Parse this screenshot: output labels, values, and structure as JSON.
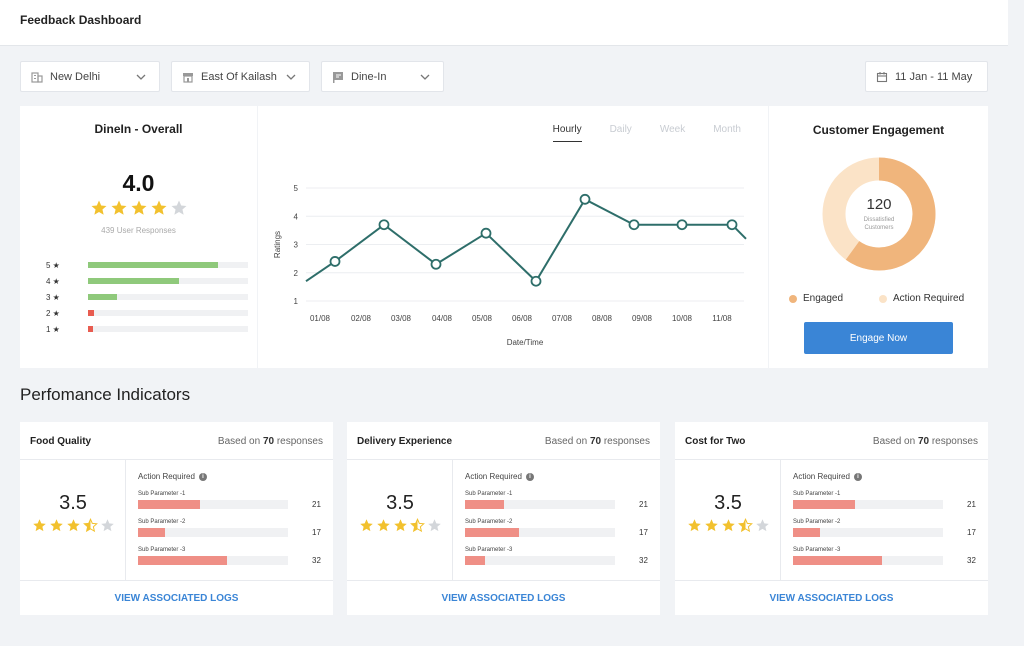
{
  "app": {
    "title": "Feedback Dashboard"
  },
  "filters": {
    "city": {
      "value": "New Delhi",
      "icon": "building-icon"
    },
    "area": {
      "value": "East Of Kailash",
      "icon": "store-icon"
    },
    "channel": {
      "value": "Dine-In",
      "icon": "flag-icon"
    },
    "date_range": {
      "value": "11 Jan - 11 May",
      "icon": "calendar-icon"
    }
  },
  "overall": {
    "title": "DineIn - Overall",
    "score": "4.0",
    "stars": 4,
    "responses": "439 User Responses",
    "distribution": [
      {
        "label": "5 ★",
        "fraction": 0.81,
        "color": "#8fc97b"
      },
      {
        "label": "4 ★",
        "fraction": 0.57,
        "color": "#8fc97b"
      },
      {
        "label": "3 ★",
        "fraction": 0.18,
        "color": "#8fc97b"
      },
      {
        "label": "2 ★",
        "fraction": 0.04,
        "color": "#e85c50"
      },
      {
        "label": "1 ★",
        "fraction": 0.03,
        "color": "#e85c50"
      }
    ]
  },
  "chart_tabs": [
    {
      "label": "Hourly",
      "active": true
    },
    {
      "label": "Daily",
      "active": false
    },
    {
      "label": "Week",
      "active": false
    },
    {
      "label": "Month",
      "active": false
    }
  ],
  "chart_data": {
    "type": "line",
    "ylabel": "Ratings",
    "xlabel": "Date/Time",
    "ylim": [
      1,
      5
    ],
    "yticks": [
      "1",
      "2",
      "3",
      "4",
      "5"
    ],
    "categories": [
      "01/08",
      "02/08",
      "03/08",
      "04/08",
      "05/08",
      "06/08",
      "07/08",
      "08/08",
      "09/08",
      "10/08",
      "11/08"
    ],
    "values": [
      1.7,
      2.4,
      3.7,
      2.3,
      3.4,
      1.7,
      4.6,
      3.7,
      3.7,
      3.7,
      3.2
    ],
    "markers": [
      false,
      true,
      true,
      true,
      true,
      true,
      true,
      true,
      true,
      true,
      false
    ],
    "color": "#2e6e6a"
  },
  "engagement": {
    "title": "Customer Engagement",
    "center_value": "120",
    "center_label": "Dissatisfied Customers",
    "engaged_fraction": 0.6,
    "legend": [
      {
        "label": "Engaged",
        "color": "#f0b57c"
      },
      {
        "label": "Action Required",
        "color": "#fbe3c7"
      }
    ],
    "button_label": "Engage Now"
  },
  "section_title": "Perfomance Indicators",
  "indicators": [
    {
      "title": "Food Quality",
      "based_prefix": "Based on ",
      "based_count": "70",
      "based_suffix": " responses",
      "score": "3.5",
      "stars": 3.5,
      "action_required": "Action Required",
      "subs": [
        {
          "name": "Sub Parameter -1",
          "value": "21",
          "fraction": 0.41
        },
        {
          "name": "Sub Parameter -2",
          "value": "17",
          "fraction": 0.18
        },
        {
          "name": "Sub Parameter -3",
          "value": "32",
          "fraction": 0.59
        }
      ],
      "link": "VIEW ASSOCIATED LOGS"
    },
    {
      "title": "Delivery Experience",
      "based_prefix": "Based on ",
      "based_count": "70",
      "based_suffix": " responses",
      "score": "3.5",
      "stars": 3.5,
      "action_required": "Action Required",
      "subs": [
        {
          "name": "Sub Parameter -1",
          "value": "21",
          "fraction": 0.26
        },
        {
          "name": "Sub Parameter -2",
          "value": "17",
          "fraction": 0.36
        },
        {
          "name": "Sub Parameter -3",
          "value": "32",
          "fraction": 0.13
        }
      ],
      "link": "VIEW ASSOCIATED LOGS"
    },
    {
      "title": "Cost for Two",
      "based_prefix": "Based on ",
      "based_count": "70",
      "based_suffix": " responses",
      "score": "3.5",
      "stars": 3.5,
      "action_required": "Action Required",
      "subs": [
        {
          "name": "Sub Parameter -1",
          "value": "21",
          "fraction": 0.41
        },
        {
          "name": "Sub Parameter -2",
          "value": "17",
          "fraction": 0.18
        },
        {
          "name": "Sub Parameter -3",
          "value": "32",
          "fraction": 0.59
        }
      ],
      "link": "VIEW ASSOCIATED LOGS"
    }
  ]
}
